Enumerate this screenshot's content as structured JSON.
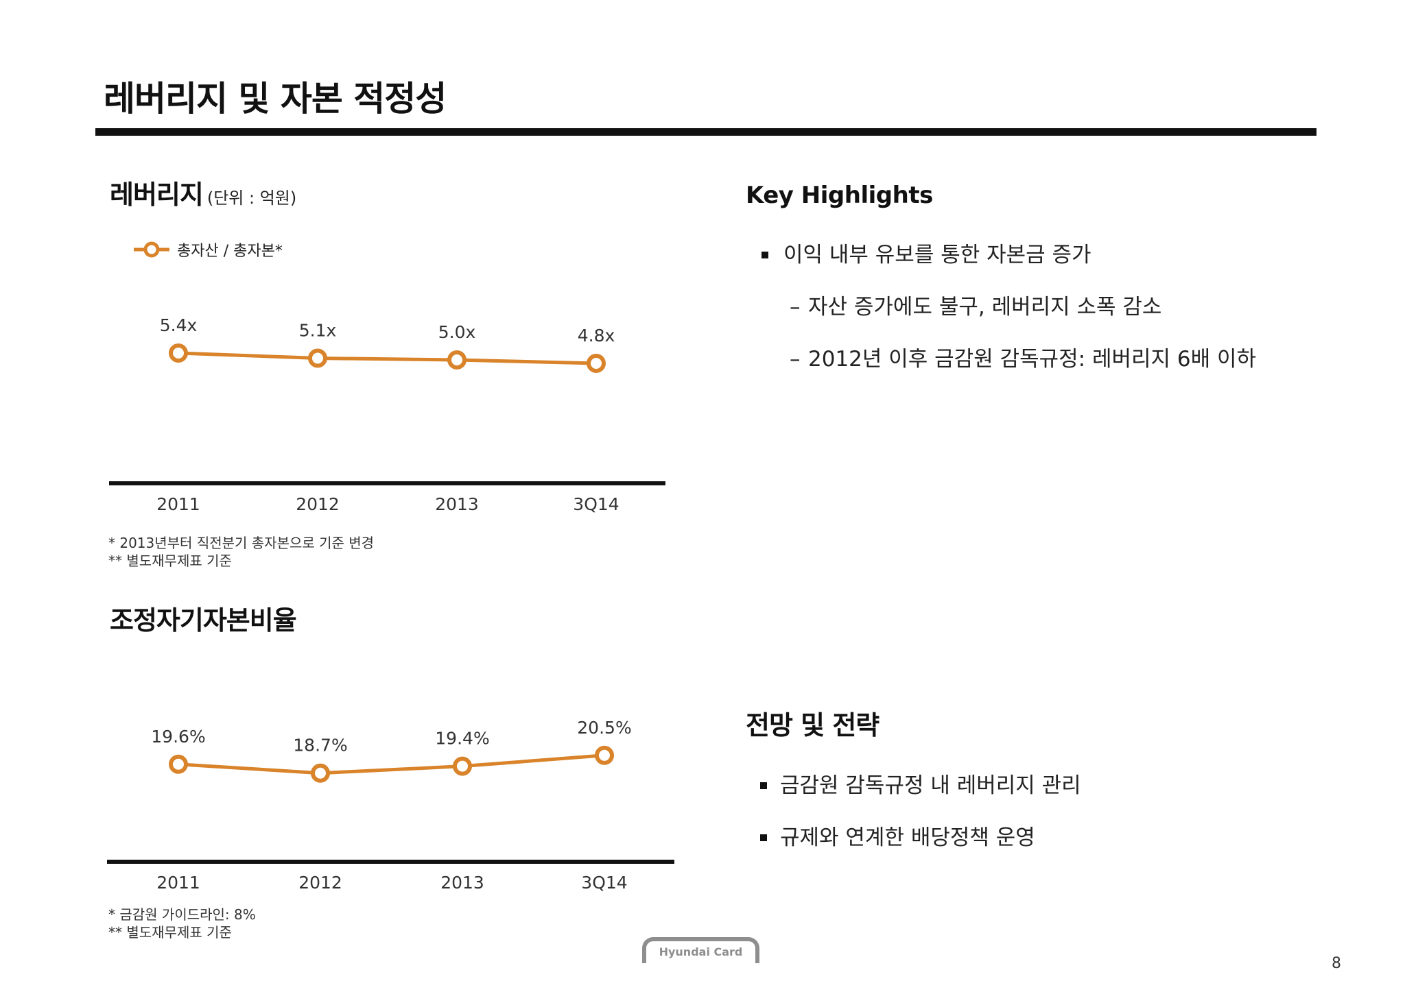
{
  "slide": {
    "title": "레버리지 및 자본 적정성",
    "page_number": "8"
  },
  "chart_data": [
    {
      "type": "line",
      "title": "레버리지",
      "unit": "(단위 : 억원)",
      "categories": [
        "2011",
        "2012",
        "2013",
        "3Q14"
      ],
      "series": [
        {
          "name": "총자산 / 총자본*",
          "values": [
            5.4,
            5.1,
            5.0,
            4.8
          ],
          "labels": [
            "5.4x",
            "5.1x",
            "5.0x",
            "4.8x"
          ]
        }
      ],
      "xlabel": "",
      "ylabel": "",
      "ylim": [
        2,
        7
      ],
      "grid": false,
      "legend": "top-left",
      "notes": [
        "* 2013년부터 직전분기 총자본으로 기준 변경",
        "** 별도재무제표 기준"
      ]
    },
    {
      "type": "line",
      "title": "조정자기자본비율",
      "categories": [
        "2011",
        "2012",
        "2013",
        "3Q14"
      ],
      "series": [
        {
          "values": [
            19.6,
            18.7,
            19.4,
            20.5
          ],
          "labels": [
            "19.6%",
            "18.7%",
            "19.4%",
            "20.5%"
          ]
        }
      ],
      "xlabel": "",
      "ylabel": "",
      "ylim": [
        15,
        25
      ],
      "grid": false,
      "notes": [
        "* 금감원 가이드라인: 8%",
        "** 별도재무제표 기준"
      ]
    }
  ],
  "highlights": {
    "heading": "Key Highlights",
    "bullet": "이익 내부 유보를 통한 자본금 증가",
    "sub_marker": "–",
    "sub_items": [
      "자산 증가에도 불구, 레버리지 소폭 감소",
      "2012년 이후 금감원 감독규정: 레버리지 6배 이하"
    ]
  },
  "outlook": {
    "heading": "전망 및 전략",
    "bullets": [
      "금감원 감독규정 내 레버리지 관리",
      "규제와 연계한 배당정책 운영"
    ]
  },
  "logo": {
    "text": "Hyundai Card"
  },
  "icons": {
    "bullet": "square-bullet-icon",
    "legend_marker": "line-circle-marker-icon"
  },
  "colors": {
    "accent": "#D9832A",
    "text": "#222222",
    "rule": "#111111",
    "logo": "#8E8E8E"
  }
}
